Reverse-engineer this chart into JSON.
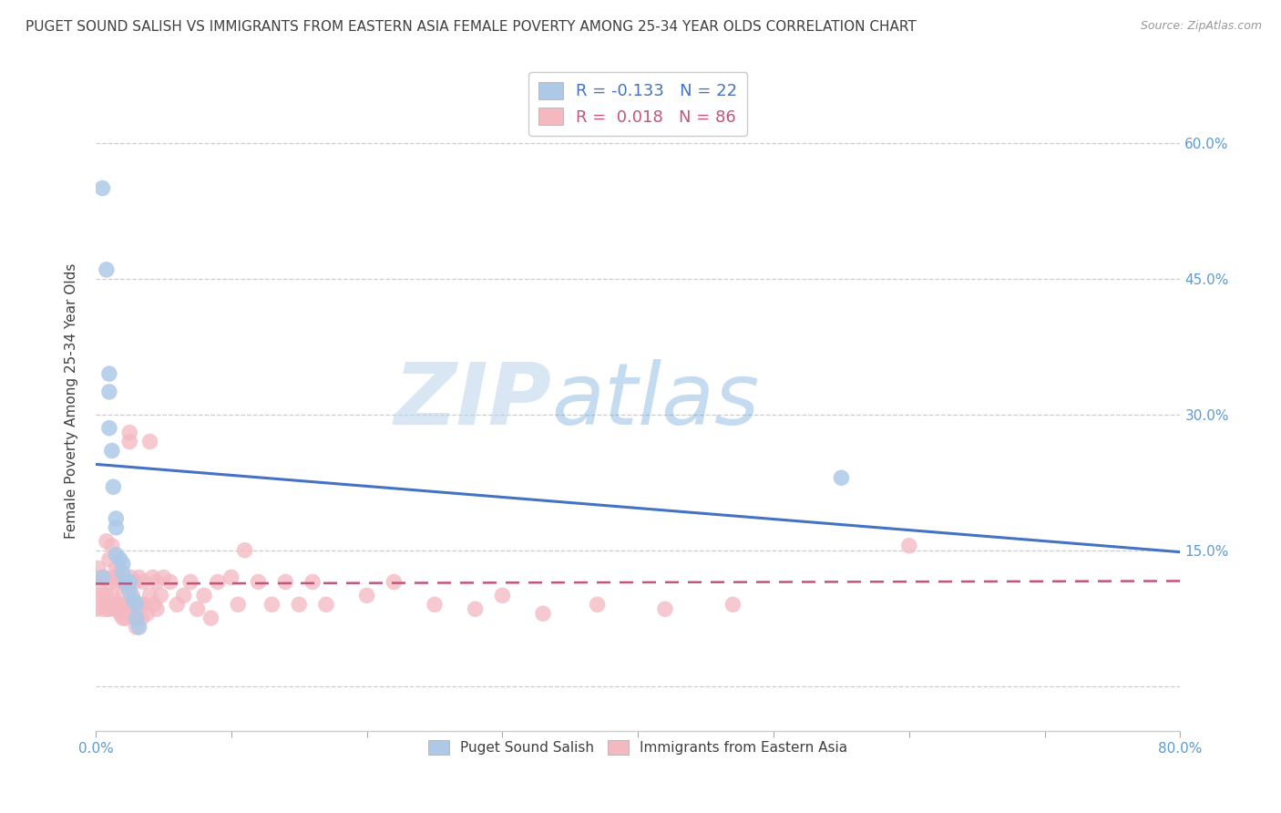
{
  "title": "PUGET SOUND SALISH VS IMMIGRANTS FROM EASTERN ASIA FEMALE POVERTY AMONG 25-34 YEAR OLDS CORRELATION CHART",
  "source": "Source: ZipAtlas.com",
  "ylabel": "Female Poverty Among 25-34 Year Olds",
  "y_ticks": [
    0.0,
    0.15,
    0.3,
    0.45,
    0.6
  ],
  "y_tick_labels_right": [
    "",
    "15.0%",
    "30.0%",
    "45.0%",
    "60.0%"
  ],
  "xlim": [
    0.0,
    0.8
  ],
  "ylim": [
    -0.05,
    0.68
  ],
  "blue_scatter_x": [
    0.005,
    0.008,
    0.01,
    0.01,
    0.01,
    0.012,
    0.013,
    0.015,
    0.015,
    0.015,
    0.018,
    0.02,
    0.02,
    0.022,
    0.025,
    0.025,
    0.028,
    0.03,
    0.03,
    0.032,
    0.55,
    0.005
  ],
  "blue_scatter_y": [
    0.55,
    0.46,
    0.345,
    0.325,
    0.285,
    0.26,
    0.22,
    0.185,
    0.175,
    0.145,
    0.14,
    0.135,
    0.125,
    0.115,
    0.115,
    0.105,
    0.095,
    0.09,
    0.075,
    0.065,
    0.23,
    0.12
  ],
  "pink_scatter_x": [
    0.0,
    0.0,
    0.0,
    0.002,
    0.004,
    0.005,
    0.005,
    0.006,
    0.007,
    0.008,
    0.008,
    0.009,
    0.01,
    0.01,
    0.01,
    0.012,
    0.012,
    0.013,
    0.013,
    0.015,
    0.015,
    0.015,
    0.016,
    0.016,
    0.017,
    0.018,
    0.018,
    0.02,
    0.02,
    0.02,
    0.021,
    0.022,
    0.022,
    0.023,
    0.024,
    0.025,
    0.025,
    0.026,
    0.027,
    0.028,
    0.028,
    0.029,
    0.03,
    0.03,
    0.03,
    0.032,
    0.033,
    0.034,
    0.035,
    0.036,
    0.038,
    0.04,
    0.04,
    0.042,
    0.043,
    0.045,
    0.045,
    0.048,
    0.05,
    0.055,
    0.06,
    0.065,
    0.07,
    0.075,
    0.08,
    0.085,
    0.09,
    0.1,
    0.105,
    0.11,
    0.12,
    0.13,
    0.14,
    0.15,
    0.16,
    0.17,
    0.2,
    0.22,
    0.25,
    0.28,
    0.3,
    0.33,
    0.37,
    0.42,
    0.47,
    0.6
  ],
  "pink_scatter_y": [
    0.12,
    0.1,
    0.085,
    0.13,
    0.115,
    0.1,
    0.085,
    0.12,
    0.09,
    0.16,
    0.1,
    0.085,
    0.14,
    0.115,
    0.085,
    0.155,
    0.1,
    0.12,
    0.09,
    0.13,
    0.115,
    0.085,
    0.12,
    0.085,
    0.125,
    0.09,
    0.08,
    0.115,
    0.1,
    0.075,
    0.115,
    0.09,
    0.075,
    0.11,
    0.09,
    0.28,
    0.27,
    0.12,
    0.1,
    0.085,
    0.075,
    0.115,
    0.09,
    0.075,
    0.065,
    0.12,
    0.09,
    0.075,
    0.115,
    0.09,
    0.08,
    0.27,
    0.1,
    0.12,
    0.09,
    0.115,
    0.085,
    0.1,
    0.12,
    0.115,
    0.09,
    0.1,
    0.115,
    0.085,
    0.1,
    0.075,
    0.115,
    0.12,
    0.09,
    0.15,
    0.115,
    0.09,
    0.115,
    0.09,
    0.115,
    0.09,
    0.1,
    0.115,
    0.09,
    0.085,
    0.1,
    0.08,
    0.09,
    0.085,
    0.09,
    0.155
  ],
  "blue_color": "#aec9e8",
  "pink_color": "#f4b8c1",
  "blue_line_color": "#4472c4",
  "pink_line_color": "#c4547a",
  "blue_R": -0.133,
  "blue_N": 22,
  "pink_R": 0.018,
  "pink_N": 86,
  "legend_label_blue": "Puget Sound Salish",
  "legend_label_pink": "Immigrants from Eastern Asia",
  "watermark_zip": "ZIP",
  "watermark_atlas": "atlas",
  "background_color": "#ffffff",
  "grid_color": "#c8c8c8",
  "title_color": "#404040",
  "tick_label_color": "#5b9bd5",
  "blue_trend_start": 0.245,
  "blue_trend_end": 0.148,
  "pink_trend_start": 0.113,
  "pink_trend_end": 0.116
}
